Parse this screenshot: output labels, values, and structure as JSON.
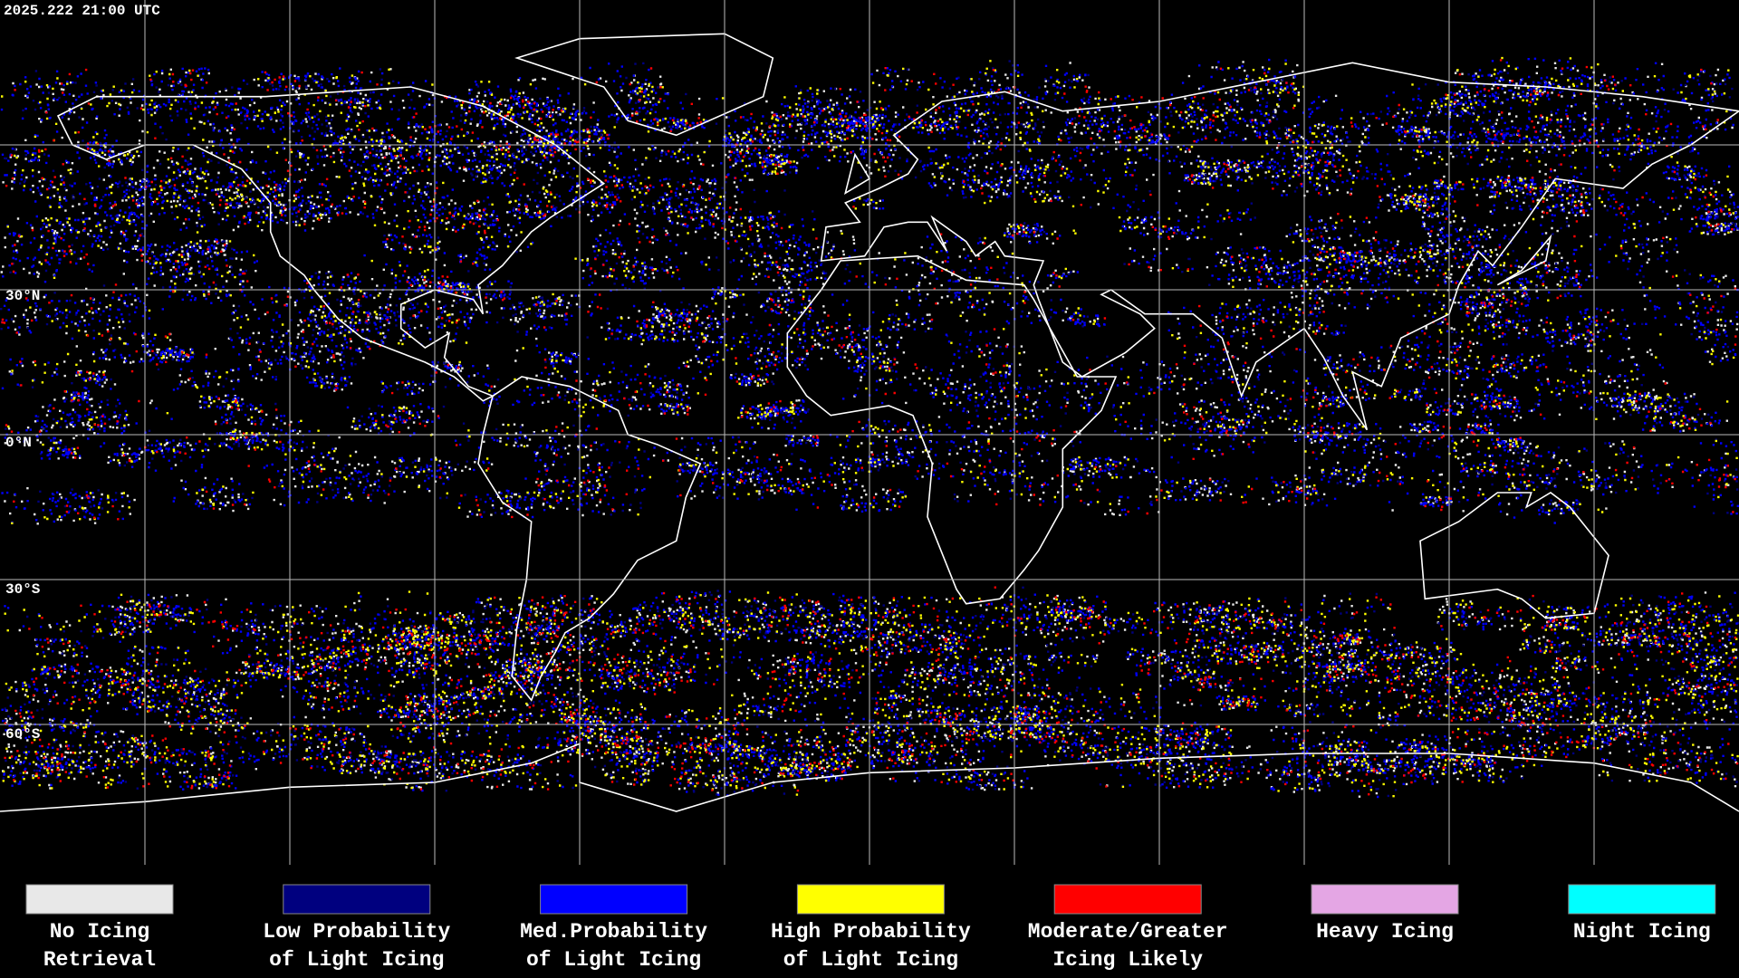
{
  "header": {
    "timestamp": "2025.222 21:00 UTC"
  },
  "map": {
    "lat_labels": [
      "30°N",
      "0°N",
      "30°S",
      "60°S"
    ]
  },
  "legend": {
    "items": [
      {
        "color": "#e8e8e8",
        "lines": [
          "No Icing",
          "Retrieval"
        ]
      },
      {
        "color": "#00007f",
        "lines": [
          "Low Probability",
          "of Light Icing"
        ]
      },
      {
        "color": "#0000ff",
        "lines": [
          "Med.Probability",
          "of Light Icing"
        ]
      },
      {
        "color": "#ffff00",
        "lines": [
          "High Probability",
          "of Light Icing"
        ]
      },
      {
        "color": "#ff0000",
        "lines": [
          "Moderate/Greater",
          "Icing Likely"
        ]
      },
      {
        "color": "#e4a6e4",
        "lines": [
          "Heavy Icing"
        ]
      },
      {
        "color": "#00ffff",
        "lines": [
          "Night Icing"
        ]
      }
    ]
  }
}
